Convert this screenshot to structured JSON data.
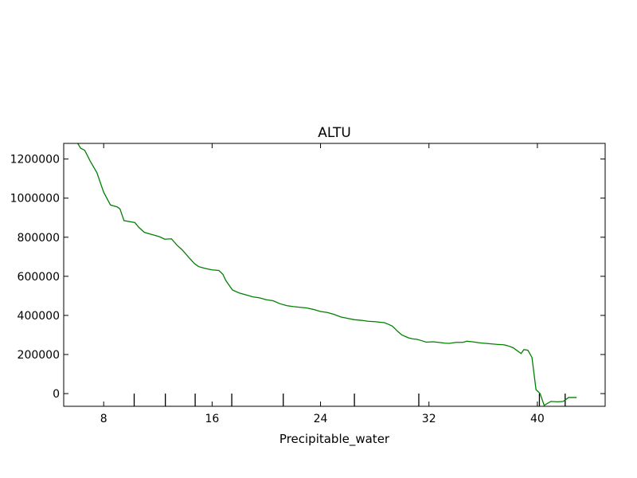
{
  "chart_data": {
    "type": "line",
    "title": "ALTU",
    "xlabel": "Precipitable_water",
    "ylabel": "",
    "xlim": [
      5.05,
      45.0
    ],
    "ylim": [
      -65000,
      1280000
    ],
    "x_ticks": [
      8,
      16,
      24,
      32,
      40
    ],
    "x_tick_labels": [
      "8",
      "16",
      "24",
      "32",
      "40"
    ],
    "y_ticks": [
      0,
      200000,
      400000,
      600000,
      800000,
      1000000,
      1200000
    ],
    "y_tick_labels": [
      "0",
      "200000",
      "400000",
      "600000",
      "800000",
      "1000000",
      "1200000"
    ],
    "rug_x": [
      10.25,
      12.55,
      14.75,
      17.45,
      21.25,
      26.5,
      31.25,
      40.15,
      42.05
    ],
    "line_color": "#008000",
    "series": [
      {
        "x": [
          6.0,
          6.3,
          6.6,
          7.0,
          7.5,
          8.0,
          8.5,
          9.0,
          9.2,
          9.5,
          10.3,
          10.6,
          11.0,
          11.5,
          12.0,
          12.2,
          12.5,
          13.0,
          13.4,
          13.8,
          14.3,
          14.7,
          15.0,
          15.5,
          16.0,
          16.5,
          16.8,
          17.0,
          17.5,
          18.0,
          18.5,
          19.0,
          19.5,
          20.0,
          20.5,
          21.0,
          21.5,
          22.0,
          23.0,
          23.5,
          24.0,
          24.5,
          25.0,
          25.5,
          26.0,
          26.5,
          27.0,
          27.5,
          28.0,
          28.4,
          28.7,
          29.0,
          29.3,
          29.7,
          30.0,
          30.5,
          30.8,
          31.1,
          31.5,
          31.8,
          32.3,
          32.7,
          33.2,
          33.5,
          34.0,
          34.5,
          34.8,
          35.2,
          35.7,
          36.0,
          36.5,
          37.0,
          37.5,
          37.8,
          38.2,
          38.5,
          38.8,
          39.0,
          39.3,
          39.6,
          39.9,
          40.2,
          40.5,
          41.0,
          41.5,
          41.9,
          42.3,
          42.9
        ],
        "y": [
          1290000,
          1255000,
          1245000,
          1190000,
          1130000,
          1030000,
          965000,
          955000,
          945000,
          885000,
          875000,
          850000,
          825000,
          815000,
          805000,
          800000,
          790000,
          792000,
          760000,
          735000,
          695000,
          665000,
          650000,
          640000,
          633000,
          630000,
          610000,
          580000,
          530000,
          515000,
          505000,
          495000,
          490000,
          480000,
          475000,
          460000,
          450000,
          445000,
          438000,
          430000,
          420000,
          415000,
          405000,
          392000,
          385000,
          378000,
          375000,
          370000,
          368000,
          365000,
          363000,
          355000,
          345000,
          318000,
          300000,
          285000,
          280000,
          278000,
          270000,
          263000,
          265000,
          262000,
          258000,
          257000,
          262000,
          262000,
          268000,
          265000,
          260000,
          258000,
          255000,
          252000,
          250000,
          245000,
          235000,
          220000,
          205000,
          225000,
          222000,
          185000,
          20000,
          0,
          -60000,
          -40000,
          -42000,
          -40000,
          -20000,
          -20000
        ]
      }
    ]
  }
}
